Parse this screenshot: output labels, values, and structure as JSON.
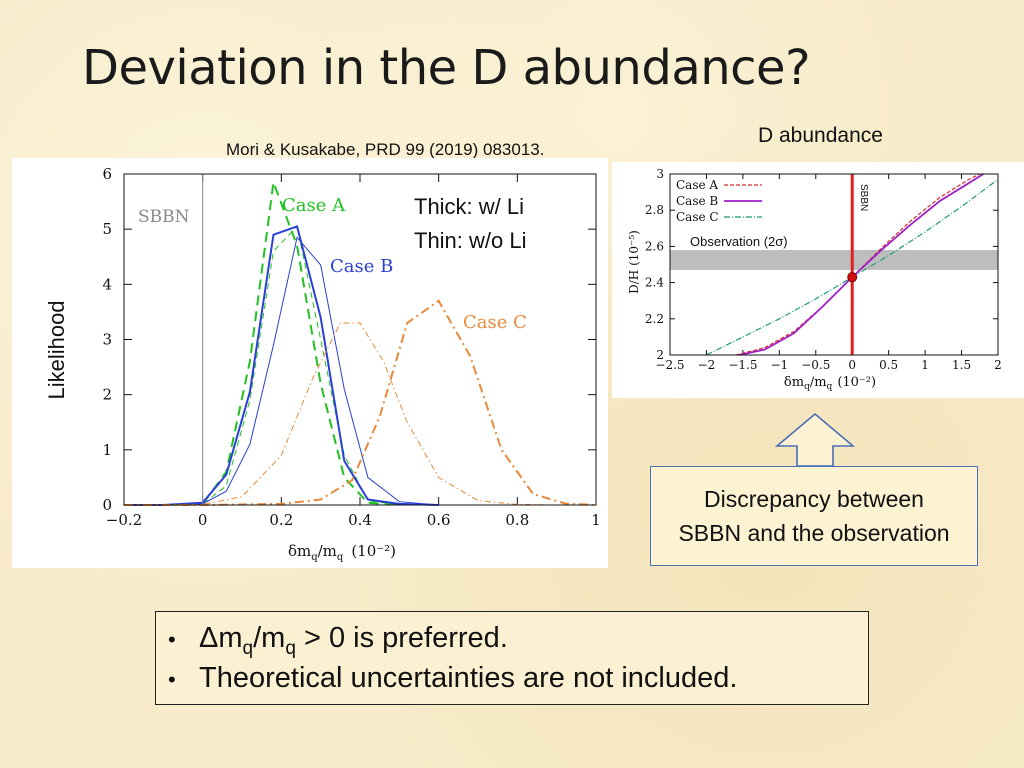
{
  "slide": {
    "title": "Deviation in the D abundance?",
    "citation": "Mori & Kusakabe, PRD 99 (2019) 083013.",
    "right_heading": "D abundance",
    "note_thick": "Thick: w/ Li",
    "note_thin": "Thin: w/o Li",
    "discrepancy_line1": "Discrepancy between",
    "discrepancy_line2": "SBBN and the observation",
    "bullet1_prefix": "Δm",
    "bullet1_sub1": "q",
    "bullet1_mid": "/m",
    "bullet1_sub2": "q",
    "bullet1_suffix": " > 0 is preferred.",
    "bullet2": "Theoretical uncertainties are not included."
  },
  "chart_data": [
    {
      "type": "line",
      "ylabel": "Likelihood",
      "xlabel_main": "δm",
      "xlabel_sub1": "q",
      "xlabel_mid": "/m",
      "xlabel_sub2": "q",
      "xlabel_unit": "(10⁻²)",
      "xlim": [
        -0.2,
        1.0
      ],
      "ylim": [
        0,
        6
      ],
      "xticks": [
        "−0.2",
        "0",
        "0.2",
        "0.4",
        "0.6",
        "0.8",
        "1"
      ],
      "yticks": [
        "0",
        "1",
        "2",
        "3",
        "4",
        "5",
        "6"
      ],
      "annotations": {
        "sbbn": "SBBN",
        "case_a": "Case A",
        "case_b": "Case B",
        "case_c": "Case C"
      },
      "colors": {
        "case_a": "#22c122",
        "case_b": "#2a3fd6",
        "case_c": "#e8893a",
        "sbbn_line": "#888888"
      },
      "series": [
        {
          "name": "Case A",
          "style": "thick-dashed",
          "x": [
            -0.2,
            -0.1,
            0,
            0.06,
            0.12,
            0.18,
            0.24,
            0.3,
            0.36,
            0.42,
            0.5
          ],
          "y": [
            0,
            0,
            0.02,
            0.6,
            2.6,
            5.85,
            4.7,
            2.2,
            0.5,
            0.04,
            0
          ]
        },
        {
          "name": "Case A",
          "style": "thin-dashed",
          "x": [
            -0.2,
            -0.1,
            0,
            0.06,
            0.12,
            0.18,
            0.24,
            0.3,
            0.36,
            0.42,
            0.5
          ],
          "y": [
            0,
            0,
            0.01,
            0.35,
            1.9,
            4.6,
            5.05,
            3.0,
            0.9,
            0.08,
            0
          ]
        },
        {
          "name": "Case B",
          "style": "thick-solid",
          "x": [
            -0.2,
            -0.1,
            0,
            0.06,
            0.12,
            0.18,
            0.24,
            0.3,
            0.36,
            0.42,
            0.5,
            0.6
          ],
          "y": [
            0,
            0,
            0.04,
            0.55,
            2.05,
            4.9,
            5.05,
            3.4,
            0.8,
            0.1,
            0.02,
            0
          ]
        },
        {
          "name": "Case B",
          "style": "thin-solid",
          "x": [
            -0.2,
            -0.1,
            0,
            0.06,
            0.12,
            0.18,
            0.24,
            0.3,
            0.36,
            0.42,
            0.5,
            0.6
          ],
          "y": [
            0,
            0,
            0.02,
            0.25,
            1.1,
            2.9,
            4.85,
            4.35,
            2.1,
            0.5,
            0.06,
            0
          ]
        },
        {
          "name": "Case C",
          "style": "thick-dashdot",
          "x": [
            -0.2,
            0,
            0.2,
            0.3,
            0.38,
            0.45,
            0.52,
            0.6,
            0.68,
            0.76,
            0.84,
            0.92,
            1.0
          ],
          "y": [
            0,
            0,
            0.02,
            0.1,
            0.45,
            1.6,
            3.3,
            3.7,
            2.7,
            1.0,
            0.2,
            0.03,
            0
          ]
        },
        {
          "name": "Case C",
          "style": "thin-dashdot",
          "x": [
            -0.2,
            0,
            0.1,
            0.2,
            0.28,
            0.35,
            0.4,
            0.46,
            0.52,
            0.6,
            0.7,
            0.8,
            0.9,
            1.0
          ],
          "y": [
            0,
            0.01,
            0.15,
            0.9,
            2.3,
            3.3,
            3.3,
            2.6,
            1.5,
            0.5,
            0.08,
            0.01,
            0,
            0
          ]
        }
      ]
    },
    {
      "type": "line",
      "ylabel": "D/H (10⁻⁵)",
      "xlabel_main": "δm",
      "xlabel_sub1": "q",
      "xlabel_mid": "/m",
      "xlabel_sub2": "q",
      "xlabel_unit": "(10⁻²)",
      "xlim": [
        -2.5,
        2
      ],
      "ylim": [
        2,
        3
      ],
      "xticks": [
        "−2.5",
        "−2",
        "−1.5",
        "−1",
        "−0.5",
        "0",
        "0.5",
        "1",
        "1.5",
        "2"
      ],
      "yticks": [
        "2",
        "2.2",
        "2.4",
        "2.6",
        "2.8",
        "3"
      ],
      "observation_band": [
        2.47,
        2.58
      ],
      "observation_label": "Observation (2σ)",
      "sbbn_label": "SBBN",
      "sbbn_x": 0,
      "sbbn_point": [
        0,
        2.43
      ],
      "colors": {
        "case_a": "#d62a2a",
        "case_b": "#a020c8",
        "case_c": "#1e9a7a",
        "sbbn": "#e02020",
        "band": "#bdbdbd"
      },
      "legend": [
        "Case A",
        "Case B",
        "Case C"
      ],
      "series": [
        {
          "name": "Case A",
          "style": "dashed",
          "x": [
            -1.6,
            -1.2,
            -0.8,
            -0.4,
            0,
            0.4,
            0.8,
            1.2,
            1.6,
            1.75
          ],
          "y": [
            2.0,
            2.04,
            2.13,
            2.27,
            2.43,
            2.59,
            2.74,
            2.87,
            2.97,
            3.0
          ]
        },
        {
          "name": "Case B",
          "style": "solid",
          "x": [
            -1.55,
            -1.2,
            -0.8,
            -0.4,
            0,
            0.4,
            0.8,
            1.2,
            1.6,
            1.8
          ],
          "y": [
            2.0,
            2.03,
            2.12,
            2.27,
            2.43,
            2.58,
            2.72,
            2.85,
            2.95,
            3.0
          ]
        },
        {
          "name": "Case C",
          "style": "dashdot",
          "x": [
            -2.0,
            -1.5,
            -1.0,
            -0.5,
            0,
            0.5,
            1.0,
            1.5,
            2.0
          ],
          "y": [
            2.0,
            2.1,
            2.2,
            2.31,
            2.43,
            2.55,
            2.68,
            2.82,
            2.97
          ]
        }
      ]
    }
  ]
}
